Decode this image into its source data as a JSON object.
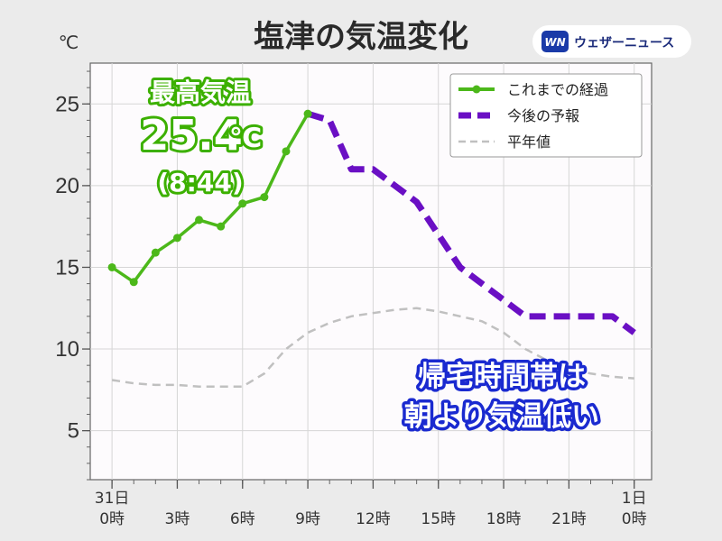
{
  "title": "塩津の気温変化",
  "unit": "℃",
  "brand": {
    "logo_mark": "WN",
    "name": "ウェザーニュース"
  },
  "max_temp": {
    "heading": "最高気温",
    "value": "25.4",
    "unit": "℃",
    "time": "(8:44)"
  },
  "callout": {
    "line1": "帰宅時間帯は",
    "line2": "朝より気温低い"
  },
  "colors": {
    "observed": "#4cb81a",
    "forecast": "#6a0fc4",
    "normal": "#c0c0c0",
    "callout_edge": "#1a2ad0"
  },
  "chart_data": {
    "type": "line",
    "title": "塩津の気温変化",
    "ylabel": "℃",
    "ylim": [
      2,
      27.5
    ],
    "yticks": [
      5,
      10,
      15,
      20,
      25
    ],
    "xlim": [
      -1,
      24.8
    ],
    "xticks": [
      {
        "x": 0,
        "line1": "31日",
        "line2": "0時"
      },
      {
        "x": 3,
        "line1": "",
        "line2": "3時"
      },
      {
        "x": 6,
        "line1": "",
        "line2": "6時"
      },
      {
        "x": 9,
        "line1": "",
        "line2": "9時"
      },
      {
        "x": 12,
        "line1": "",
        "line2": "12時"
      },
      {
        "x": 15,
        "line1": "",
        "line2": "15時"
      },
      {
        "x": 18,
        "line1": "",
        "line2": "18時"
      },
      {
        "x": 21,
        "line1": "",
        "line2": "21時"
      },
      {
        "x": 24,
        "line1": "1日",
        "line2": "0時"
      }
    ],
    "grid": true,
    "legend_position": "top-right",
    "series": [
      {
        "name": "これまでの経過",
        "style": "solid-markers",
        "x": [
          0,
          1,
          2,
          3,
          4,
          5,
          6,
          7,
          8,
          9
        ],
        "values": [
          15.0,
          14.1,
          15.9,
          16.8,
          17.9,
          17.5,
          18.9,
          19.3,
          22.1,
          24.4
        ]
      },
      {
        "name": "今後の予報",
        "style": "dashed",
        "x": [
          9,
          10,
          11,
          12,
          13,
          14,
          15,
          16,
          17,
          18,
          19,
          20,
          21,
          22,
          23,
          24
        ],
        "values": [
          24.4,
          24.0,
          21.0,
          21.0,
          20.0,
          19.0,
          17.0,
          15.0,
          14.0,
          13.0,
          12.0,
          12.0,
          12.0,
          12.0,
          12.0,
          11.0
        ]
      },
      {
        "name": "平年値",
        "style": "dashed-thin",
        "x": [
          0,
          1,
          2,
          3,
          4,
          5,
          6,
          7,
          8,
          9,
          10,
          11,
          12,
          13,
          14,
          15,
          16,
          17,
          18,
          19,
          20,
          21,
          22,
          23,
          24
        ],
        "values": [
          8.1,
          7.9,
          7.8,
          7.8,
          7.7,
          7.7,
          7.7,
          8.5,
          10.0,
          11.0,
          11.6,
          12.0,
          12.2,
          12.4,
          12.5,
          12.3,
          12.0,
          11.7,
          11.0,
          10.0,
          9.3,
          8.8,
          8.5,
          8.3,
          8.2
        ]
      }
    ]
  }
}
